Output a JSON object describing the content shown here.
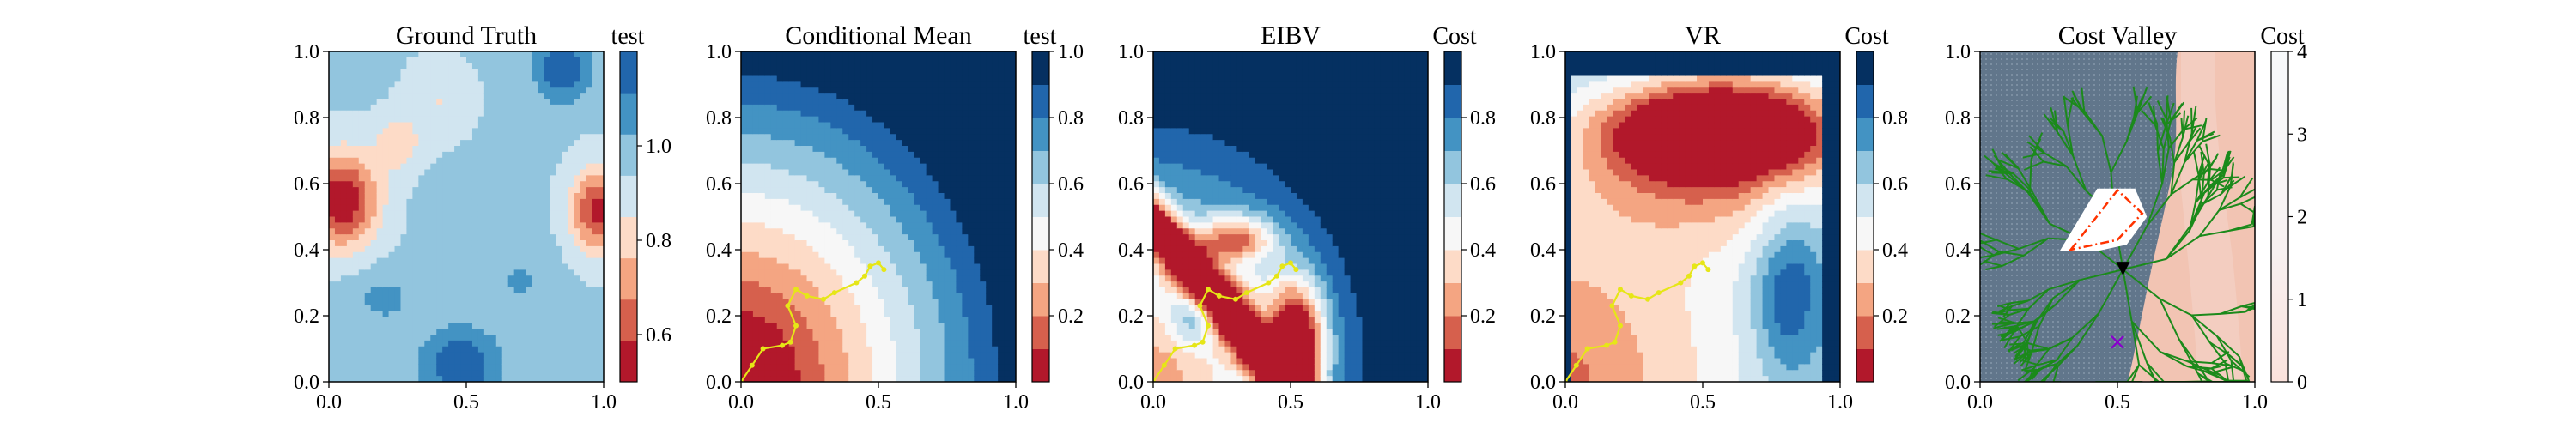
{
  "figure": {
    "background": "#ffffff"
  },
  "colors": {
    "rdbu": [
      "#67001f",
      "#b2182b",
      "#d6604d",
      "#f4a582",
      "#fddbc7",
      "#f7f7f7",
      "#d1e5f0",
      "#92c5de",
      "#4393c3",
      "#2166ac",
      "#053061"
    ],
    "path": "#e6e617",
    "tree": "#1b8a1b",
    "cost_low": "#5a6f85",
    "cost_high": "#f2c2b1",
    "route": "#ff3300",
    "cross_marker": "#8800cc",
    "current_marker": "#000000"
  },
  "chart_data": [
    {
      "type": "heatmap",
      "title": "Ground Truth",
      "field": "ground_truth",
      "xlim": [
        0,
        1
      ],
      "ylim": [
        0,
        1
      ],
      "xticks": [
        "0.0",
        "0.5",
        "1.0"
      ],
      "yticks": [
        "0.0",
        "0.2",
        "0.4",
        "0.6",
        "0.8",
        "1.0"
      ],
      "colorbar": {
        "label": "test",
        "range": [
          0.5,
          1.2
        ],
        "ticks": [
          "0.6",
          "0.8",
          "1.0"
        ],
        "tick_values": [
          0.6,
          0.8,
          1.0
        ],
        "levels": 8
      },
      "show_path": false
    },
    {
      "type": "heatmap",
      "title": "Conditional Mean",
      "field": "conditional_mean",
      "xlim": [
        0,
        1
      ],
      "ylim": [
        0,
        1
      ],
      "xticks": [
        "0.0",
        "0.5",
        "1.0"
      ],
      "yticks": [
        "0.0",
        "0.2",
        "0.4",
        "0.6",
        "0.8",
        "1.0"
      ],
      "colorbar": {
        "label": "test",
        "range": [
          0.0,
          1.0
        ],
        "ticks": [
          "0.2",
          "0.4",
          "0.6",
          "0.8",
          "1.0"
        ],
        "tick_values": [
          0.2,
          0.4,
          0.6,
          0.8,
          1.0
        ],
        "levels": 10
      },
      "show_path": true
    },
    {
      "type": "heatmap",
      "title": "EIBV",
      "field": "eibv",
      "xlim": [
        0,
        1
      ],
      "ylim": [
        0,
        1
      ],
      "xticks": [
        "0.0",
        "0.5",
        "1.0"
      ],
      "yticks": [
        "0.0",
        "0.2",
        "0.4",
        "0.6",
        "0.8",
        "1.0"
      ],
      "colorbar": {
        "label": "Cost",
        "range": [
          0.0,
          1.0
        ],
        "ticks": [
          "0.2",
          "0.4",
          "0.6",
          "0.8"
        ],
        "tick_values": [
          0.2,
          0.4,
          0.6,
          0.8
        ],
        "levels": 10
      },
      "show_path": true
    },
    {
      "type": "heatmap",
      "title": "VR",
      "field": "vr",
      "xlim": [
        0,
        1
      ],
      "ylim": [
        0,
        1
      ],
      "xticks": [
        "0.0",
        "0.5",
        "1.0"
      ],
      "yticks": [
        "0.0",
        "0.2",
        "0.4",
        "0.6",
        "0.8",
        "1.0"
      ],
      "colorbar": {
        "label": "Cost",
        "range": [
          0.0,
          1.0
        ],
        "ticks": [
          "0.2",
          "0.4",
          "0.6",
          "0.8"
        ],
        "tick_values": [
          0.2,
          0.4,
          0.6,
          0.8
        ],
        "levels": 10
      },
      "show_path": true
    },
    {
      "type": "heatmap",
      "title": "Cost Valley",
      "field": "cost_valley",
      "xlim": [
        0,
        1
      ],
      "ylim": [
        0,
        1
      ],
      "xticks": [
        "0.0",
        "0.5",
        "1.0"
      ],
      "yticks": [
        "0.0",
        "0.2",
        "0.4",
        "0.6",
        "0.8",
        "1.0"
      ],
      "colorbar": {
        "label": "Cost",
        "range": [
          0,
          4
        ],
        "ticks": [
          "0",
          "1",
          "2",
          "3",
          "4"
        ],
        "tick_values": [
          0,
          1,
          2,
          3,
          4
        ],
        "levels": 0
      },
      "show_path": false,
      "current_location": [
        0.52,
        0.34
      ],
      "cross_location": [
        0.5,
        0.12
      ],
      "obstacle_polygon": [
        [
          0.3,
          0.4
        ],
        [
          0.43,
          0.58
        ],
        [
          0.56,
          0.58
        ],
        [
          0.6,
          0.5
        ],
        [
          0.53,
          0.42
        ],
        [
          0.42,
          0.4
        ]
      ],
      "route_polygon": [
        [
          0.33,
          0.4
        ],
        [
          0.5,
          0.58
        ],
        [
          0.59,
          0.51
        ],
        [
          0.5,
          0.43
        ]
      ]
    }
  ],
  "sampled_path": {
    "x": [
      0.0,
      0.04,
      0.08,
      0.15,
      0.18,
      0.2,
      0.17,
      0.2,
      0.24,
      0.3,
      0.34,
      0.42,
      0.45,
      0.47,
      0.5,
      0.52
    ],
    "y": [
      0.0,
      0.05,
      0.1,
      0.11,
      0.12,
      0.17,
      0.23,
      0.28,
      0.26,
      0.25,
      0.27,
      0.3,
      0.32,
      0.35,
      0.36,
      0.34
    ]
  }
}
